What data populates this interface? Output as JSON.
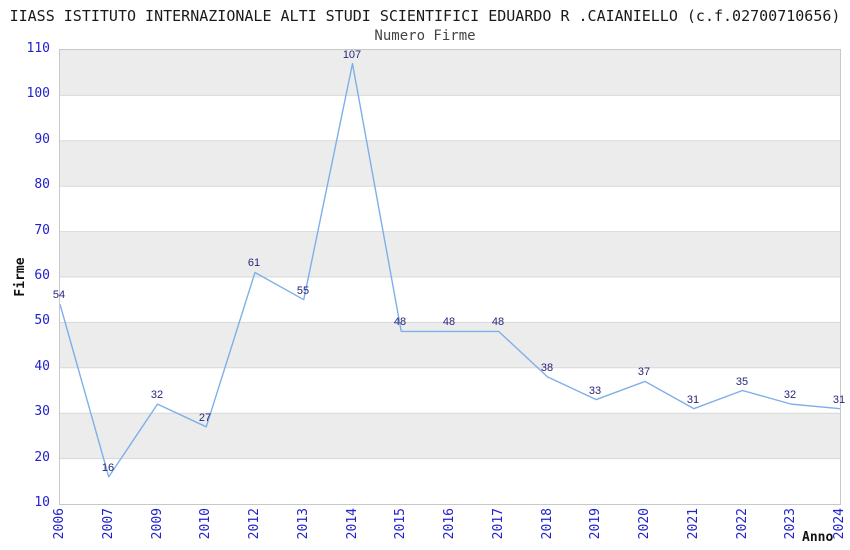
{
  "chart_data": {
    "type": "line",
    "title": "IIASS ISTITUTO INTERNAZIONALE ALTI STUDI SCIENTIFICI EDUARDO R .CAIANIELLO (c.f.02700710656)",
    "subtitle": "Numero Firme",
    "xlabel": "Anno",
    "ylabel": "Firme",
    "categories": [
      "2006",
      "2007",
      "2009",
      "2010",
      "2012",
      "2013",
      "2014",
      "2015",
      "2016",
      "2017",
      "2018",
      "2019",
      "2020",
      "2021",
      "2022",
      "2023",
      "2024"
    ],
    "values": [
      54,
      16,
      32,
      27,
      61,
      55,
      107,
      48,
      48,
      48,
      38,
      33,
      37,
      31,
      35,
      32,
      31
    ],
    "ylim": [
      10,
      110
    ],
    "ytick_step": 10,
    "grid": "horizontal-bands",
    "legend": "none",
    "point_labels_shown": true,
    "colors": {
      "line": "#7fafe8",
      "tick_label": "#2222cc",
      "data_label": "#26267a",
      "band_gray": "#ececec",
      "band_white": "#ffffff",
      "gridline": "#d8d8d8",
      "plot_border": "#c8c8c8",
      "title_text": "#1a1a1a",
      "subtitle_text": "#444444"
    }
  }
}
